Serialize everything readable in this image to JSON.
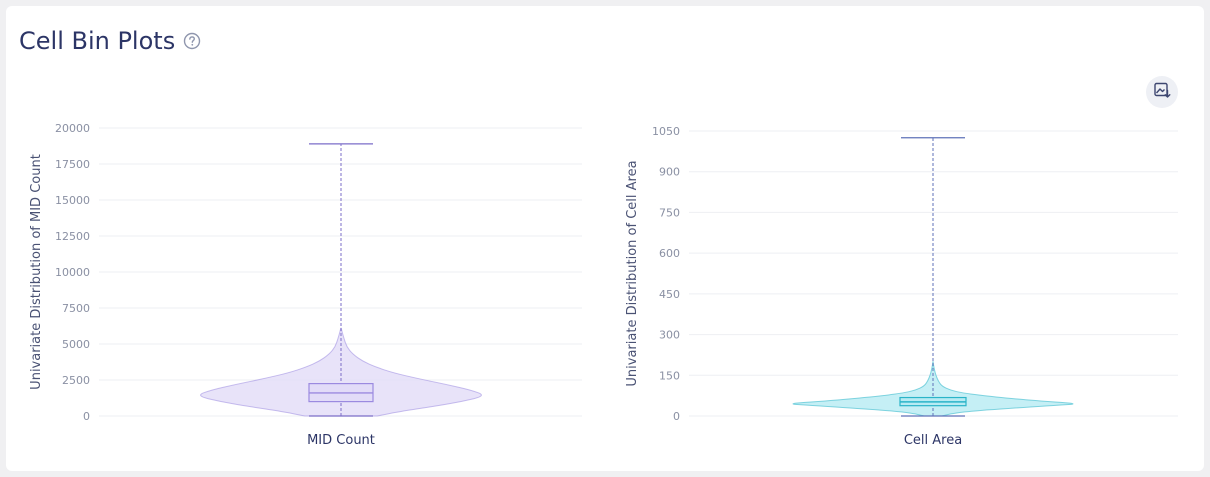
{
  "page": {
    "title": "Cell Bin Plots",
    "help_icon": "question-circle-icon",
    "export_icon": "image-download-icon"
  },
  "chart_data": [
    {
      "type": "violin",
      "category": "MID Count",
      "ylabel": "Univariate Distribution of MID Count",
      "ylim": [
        0,
        20000
      ],
      "yticks": [
        0,
        2500,
        5000,
        7500,
        10000,
        12500,
        15000,
        17500,
        20000
      ],
      "min": 0,
      "q1": 1000,
      "median": 1600,
      "q3": 2250,
      "max": 18900,
      "color": "#9b8ae0",
      "fill": "#e2dcf8",
      "density_profile": [
        [
          0,
          0.25
        ],
        [
          300,
          0.4
        ],
        [
          700,
          0.66
        ],
        [
          1000,
          0.83
        ],
        [
          1400,
          1.0
        ],
        [
          1800,
          0.9
        ],
        [
          2200,
          0.72
        ],
        [
          2600,
          0.53
        ],
        [
          3000,
          0.36
        ],
        [
          3400,
          0.24
        ],
        [
          3800,
          0.15
        ],
        [
          4300,
          0.08
        ],
        [
          4800,
          0.04
        ],
        [
          5400,
          0.02
        ],
        [
          5900,
          0.006
        ]
      ]
    },
    {
      "type": "violin",
      "category": "Cell Area",
      "ylabel": "Univariate Distribution of Cell Area",
      "ylim": [
        0,
        1050
      ],
      "yticks": [
        0,
        150,
        300,
        450,
        600,
        750,
        900,
        1050
      ],
      "min": 0,
      "q1": 38,
      "median": 52,
      "q3": 68,
      "max": 1025,
      "color": "#2ab4c8",
      "fill": "#b7ebf3",
      "density_profile": [
        [
          0,
          0.06
        ],
        [
          10,
          0.14
        ],
        [
          20,
          0.3
        ],
        [
          30,
          0.58
        ],
        [
          40,
          0.85
        ],
        [
          45,
          1.0
        ],
        [
          55,
          0.74
        ],
        [
          65,
          0.52
        ],
        [
          75,
          0.34
        ],
        [
          85,
          0.2
        ],
        [
          95,
          0.12
        ],
        [
          110,
          0.06
        ],
        [
          130,
          0.035
        ],
        [
          150,
          0.02
        ],
        [
          170,
          0.01
        ],
        [
          190,
          0.003
        ]
      ]
    }
  ]
}
